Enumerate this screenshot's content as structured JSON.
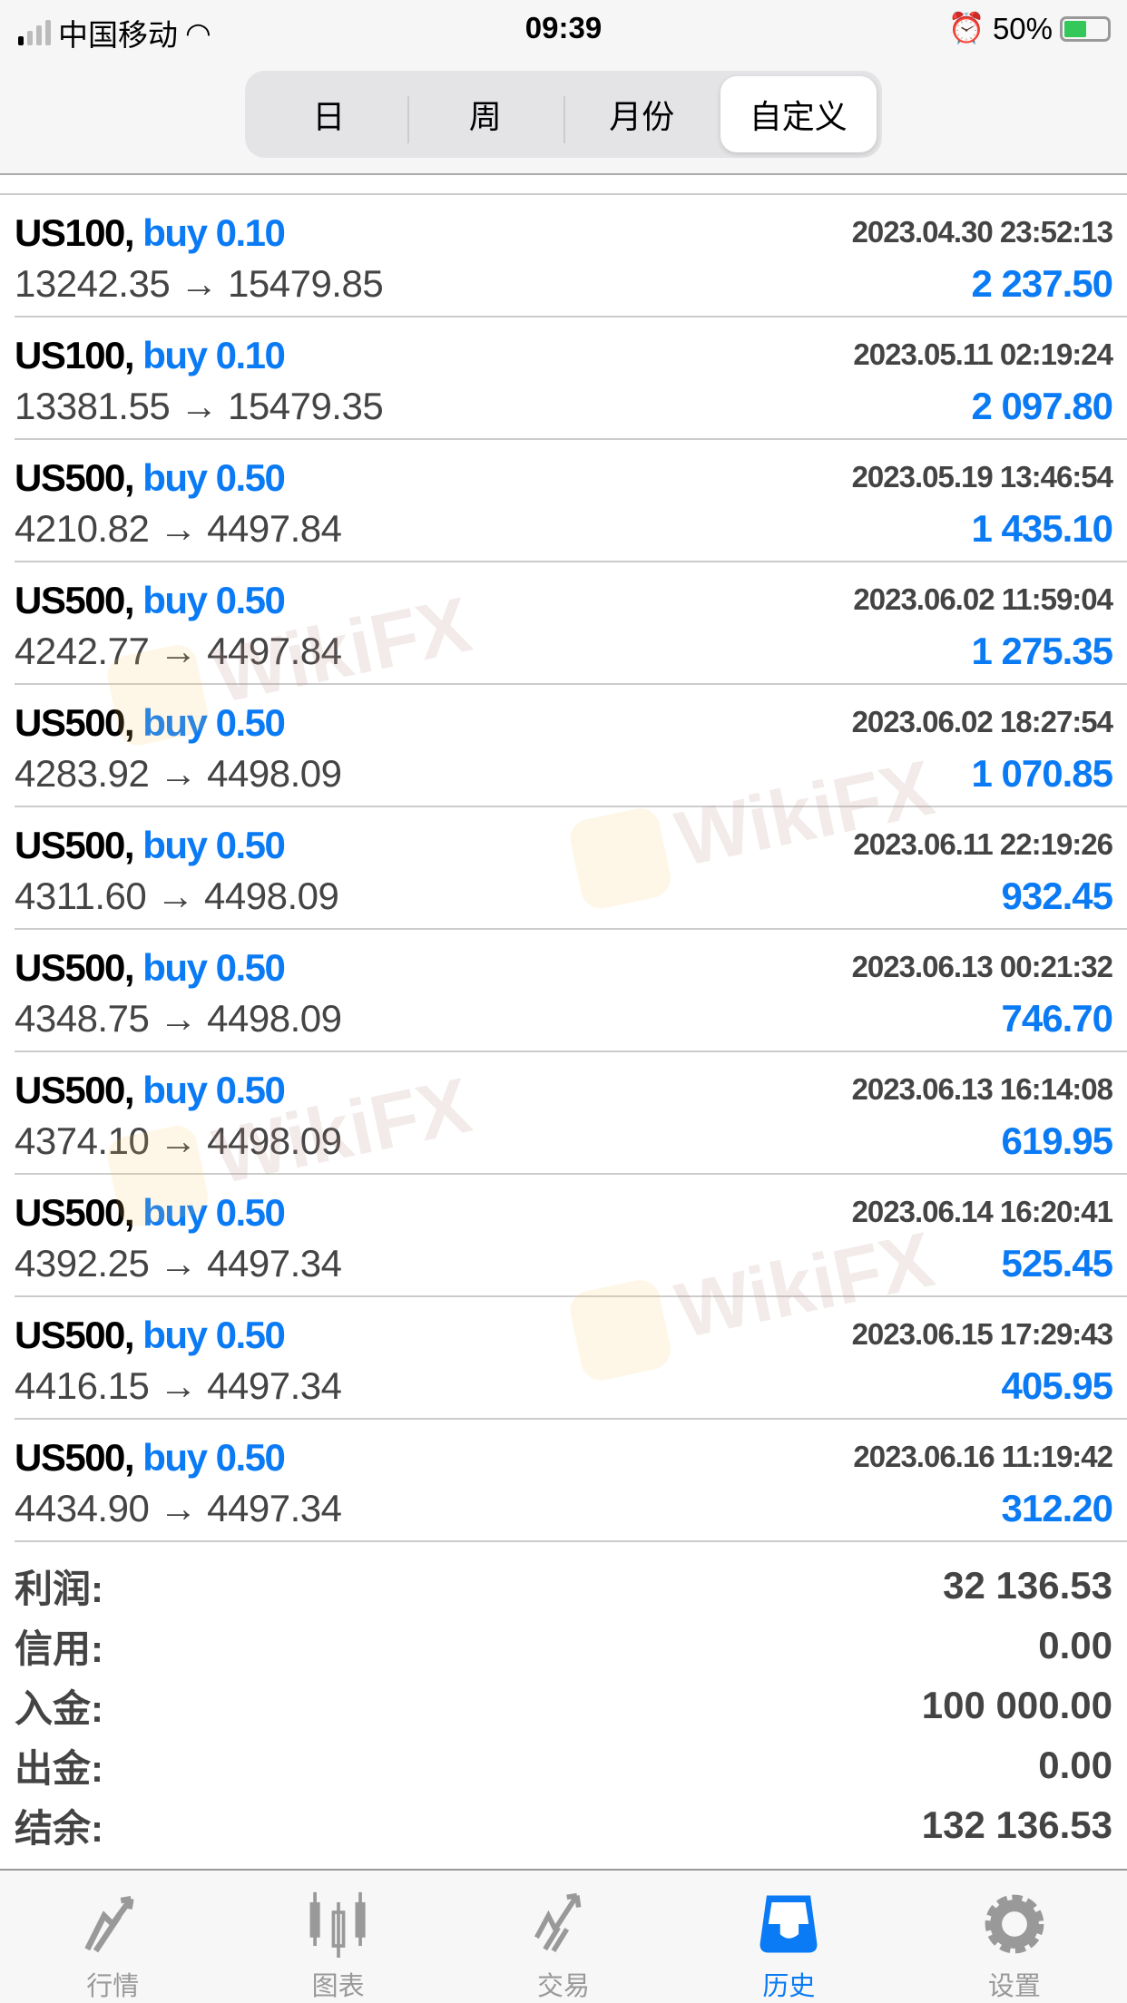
{
  "status_bar": {
    "carrier": "中国移动",
    "time": "09:39",
    "battery": "50%"
  },
  "segments": [
    {
      "label": "日"
    },
    {
      "label": "周"
    },
    {
      "label": "月份"
    },
    {
      "label": "自定义",
      "active": true
    }
  ],
  "trades": [
    {
      "symbol": "US100,",
      "type": "buy 0.10",
      "time": "2023.04.30 23:52:13",
      "prices": "13242.35 → 15479.85",
      "profit": "2 237.50"
    },
    {
      "symbol": "US100,",
      "type": "buy 0.10",
      "time": "2023.05.11 02:19:24",
      "prices": "13381.55 → 15479.35",
      "profit": "2 097.80"
    },
    {
      "symbol": "US500,",
      "type": "buy 0.50",
      "time": "2023.05.19 13:46:54",
      "prices": "4210.82 → 4497.84",
      "profit": "1 435.10"
    },
    {
      "symbol": "US500,",
      "type": "buy 0.50",
      "time": "2023.06.02 11:59:04",
      "prices": "4242.77 → 4497.84",
      "profit": "1 275.35"
    },
    {
      "symbol": "US500,",
      "type": "buy 0.50",
      "time": "2023.06.02 18:27:54",
      "prices": "4283.92 → 4498.09",
      "profit": "1 070.85"
    },
    {
      "symbol": "US500,",
      "type": "buy 0.50",
      "time": "2023.06.11 22:19:26",
      "prices": "4311.60 → 4498.09",
      "profit": "932.45"
    },
    {
      "symbol": "US500,",
      "type": "buy 0.50",
      "time": "2023.06.13 00:21:32",
      "prices": "4348.75 → 4498.09",
      "profit": "746.70"
    },
    {
      "symbol": "US500,",
      "type": "buy 0.50",
      "time": "2023.06.13 16:14:08",
      "prices": "4374.10 → 4498.09",
      "profit": "619.95"
    },
    {
      "symbol": "US500,",
      "type": "buy 0.50",
      "time": "2023.06.14 16:20:41",
      "prices": "4392.25 → 4497.34",
      "profit": "525.45"
    },
    {
      "symbol": "US500,",
      "type": "buy 0.50",
      "time": "2023.06.15 17:29:43",
      "prices": "4416.15 → 4497.34",
      "profit": "405.95"
    },
    {
      "symbol": "US500,",
      "type": "buy 0.50",
      "time": "2023.06.16 11:19:42",
      "prices": "4434.90 → 4497.34",
      "profit": "312.20"
    }
  ],
  "summary": [
    {
      "label": "利润:",
      "value": "32 136.53"
    },
    {
      "label": "信用:",
      "value": "0.00"
    },
    {
      "label": "入金:",
      "value": "100 000.00"
    },
    {
      "label": "出金:",
      "value": "0.00"
    },
    {
      "label": "结余:",
      "value": "132 136.53"
    }
  ],
  "tabbar": [
    {
      "label": "行情",
      "icon": "quotes-icon"
    },
    {
      "label": "图表",
      "icon": "chart-icon"
    },
    {
      "label": "交易",
      "icon": "trade-icon"
    },
    {
      "label": "历史",
      "icon": "history-icon",
      "active": true
    },
    {
      "label": "设置",
      "icon": "settings-icon"
    }
  ],
  "watermark": "WikiFX",
  "colors": {
    "accent": "#0a7af5",
    "text": "#444444"
  }
}
